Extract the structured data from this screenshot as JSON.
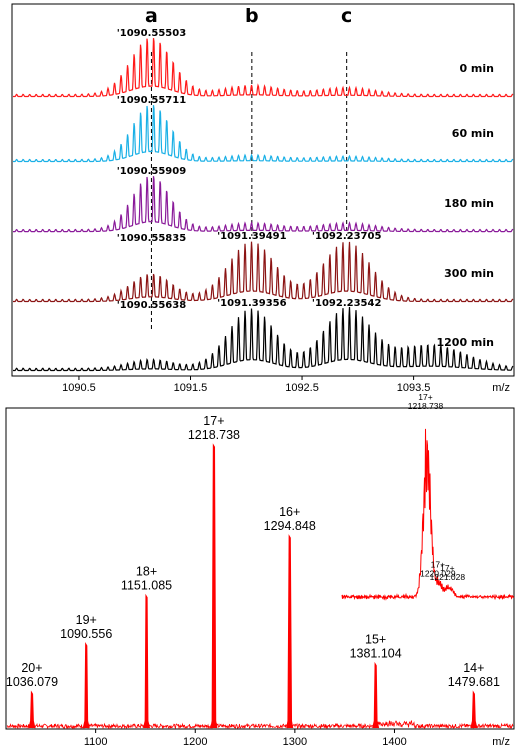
{
  "chart_data": [
    {
      "type": "line",
      "title": "",
      "xlabel": "m/z",
      "ylabel": "",
      "xlim": [
        1089.9,
        1094.4
      ],
      "x_ticks": [
        "1090.5",
        "1091.5",
        "1092.5",
        "1093.5"
      ],
      "x_tick_values": [
        1090.5,
        1091.5,
        1092.5,
        1093.5
      ],
      "grid": false,
      "peak_groups": [
        {
          "label": "a",
          "x": 1091.15
        },
        {
          "label": "b",
          "x": 1092.05
        },
        {
          "label": "c",
          "x": 1092.9
        }
      ],
      "series": [
        {
          "time": "0 min",
          "color": "#ff1a1a",
          "annotations": [
            {
              "text": "'1090.55503",
              "x": 1091.15
            }
          ],
          "envelopes": [
            {
              "center": 1091.15,
              "width": 0.26,
              "height": 1.0
            },
            {
              "center": 1092.05,
              "width": 0.35,
              "height": 0.16
            },
            {
              "center": 1092.9,
              "width": 0.35,
              "height": 0.12
            }
          ]
        },
        {
          "time": "60 min",
          "color": "#1ab0e6",
          "annotations": [
            {
              "text": "'1090.55711",
              "x": 1091.15
            }
          ],
          "envelopes": [
            {
              "center": 1091.15,
              "width": 0.24,
              "height": 1.0
            },
            {
              "center": 1092.05,
              "width": 0.35,
              "height": 0.08
            },
            {
              "center": 1092.9,
              "width": 0.35,
              "height": 0.06
            }
          ]
        },
        {
          "time": "180 min",
          "color": "#8a1a9a",
          "annotations": [
            {
              "text": "'1090.55909",
              "x": 1091.15
            }
          ],
          "envelopes": [
            {
              "center": 1091.15,
              "width": 0.24,
              "height": 1.0
            },
            {
              "center": 1092.05,
              "width": 0.35,
              "height": 0.12
            },
            {
              "center": 1092.9,
              "width": 0.35,
              "height": 0.12
            }
          ]
        },
        {
          "time": "300 min",
          "color": "#8b1414",
          "annotations": [
            {
              "text": "'1090.55835",
              "x": 1091.15
            },
            {
              "text": "'1091.39491",
              "x": 1092.05
            },
            {
              "text": "'1092.23705",
              "x": 1092.9
            }
          ],
          "envelopes": [
            {
              "center": 1091.15,
              "width": 0.26,
              "height": 0.45
            },
            {
              "center": 1092.05,
              "width": 0.3,
              "height": 1.0
            },
            {
              "center": 1092.9,
              "width": 0.3,
              "height": 1.0
            }
          ]
        },
        {
          "time": "1200 min",
          "color": "#000000",
          "annotations": [
            {
              "text": "'1090.55638",
              "x": 1091.15
            },
            {
              "text": "'1091.39356",
              "x": 1092.05
            },
            {
              "text": "'1092.23542",
              "x": 1092.9
            }
          ],
          "envelopes": [
            {
              "center": 1091.15,
              "width": 0.28,
              "height": 0.15
            },
            {
              "center": 1092.05,
              "width": 0.3,
              "height": 1.0
            },
            {
              "center": 1092.9,
              "width": 0.3,
              "height": 1.0
            },
            {
              "center": 1093.65,
              "width": 0.45,
              "height": 0.4
            }
          ]
        }
      ]
    },
    {
      "type": "line",
      "title": "",
      "xlabel": "m/z",
      "ylabel": "",
      "xlim": [
        1010,
        1520
      ],
      "ylim": [
        0,
        1.0
      ],
      "x_ticks": [
        "1100",
        "1200",
        "1300",
        "1400"
      ],
      "x_tick_values": [
        1100,
        1200,
        1300,
        1400
      ],
      "grid": false,
      "color": "#ff0000",
      "peaks": [
        {
          "charge": "20+",
          "mz": "1036.079",
          "x": 1036.079,
          "height": 0.13
        },
        {
          "charge": "19+",
          "mz": "1090.556",
          "x": 1090.556,
          "height": 0.3
        },
        {
          "charge": "18+",
          "mz": "1151.085",
          "x": 1151.085,
          "height": 0.47
        },
        {
          "charge": "17+",
          "mz": "1218.738",
          "x": 1218.738,
          "height": 1.0
        },
        {
          "charge": "16+",
          "mz": "1294.848",
          "x": 1294.848,
          "height": 0.68
        },
        {
          "charge": "15+",
          "mz": "1381.104",
          "x": 1381.104,
          "height": 0.23
        },
        {
          "charge": "14+",
          "mz": "1479.681",
          "x": 1479.681,
          "height": 0.13
        }
      ],
      "inset": {
        "xlim": [
          1210,
          1228
        ],
        "color": "#ff0000",
        "annotations": [
          {
            "charge": "17+",
            "mz": "1218.738",
            "x": 1218.738,
            "height": 1.0
          },
          {
            "charge": "17+",
            "mz": "1220.029",
            "x": 1220.029,
            "height": 0.1
          },
          {
            "charge": "17+",
            "mz": "1221.028",
            "x": 1221.028,
            "height": 0.08
          }
        ]
      }
    }
  ]
}
